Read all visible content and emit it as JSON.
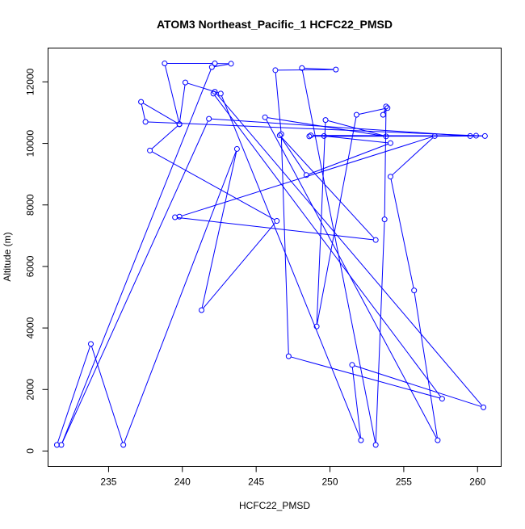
{
  "chart_data": {
    "type": "line",
    "title": "ATOM3 Northeast_Pacific_1 HCFC22_PMSD",
    "xlabel": "HCFC22_PMSD",
    "ylabel": "Altitude (m)",
    "xlim": [
      230.9,
      261.6
    ],
    "ylim": [
      -500,
      13100
    ],
    "x_ticks": [
      235,
      240,
      245,
      250,
      255,
      260
    ],
    "y_ticks": [
      0,
      2000,
      4000,
      6000,
      8000,
      10000,
      12000
    ],
    "line_color": "#0000ff",
    "grid": false,
    "markers": "open-circle",
    "series": [
      {
        "points": [
          [
            231.5,
            200
          ],
          [
            233.8,
            3480
          ],
          [
            236.0,
            200
          ],
          [
            243.7,
            9820
          ],
          [
            241.3,
            4580
          ],
          [
            246.4,
            7480
          ],
          [
            237.8,
            9770
          ],
          [
            239.8,
            10620
          ],
          [
            237.2,
            11350
          ],
          [
            237.5,
            10700
          ],
          [
            260.5,
            10240
          ],
          [
            248.7,
            10260
          ],
          [
            248.6,
            10230
          ],
          [
            259.5,
            10240
          ],
          [
            241.8,
            10800
          ],
          [
            231.8,
            200
          ],
          [
            242.0,
            12480
          ],
          [
            243.3,
            12590
          ],
          [
            242.2,
            12600
          ],
          [
            238.8,
            12600
          ],
          [
            239.8,
            10630
          ],
          [
            240.2,
            11980
          ],
          [
            242.6,
            11620
          ],
          [
            252.1,
            350
          ],
          [
            251.5,
            2800
          ],
          [
            260.4,
            1420
          ],
          [
            242.2,
            11680
          ],
          [
            242.1,
            11620
          ],
          [
            257.6,
            1700
          ],
          [
            247.2,
            3080
          ],
          [
            246.7,
            10300
          ],
          [
            246.3,
            12380
          ],
          [
            250.4,
            12400
          ],
          [
            248.1,
            12450
          ],
          [
            253.1,
            200
          ],
          [
            253.7,
            7530
          ],
          [
            253.8,
            11200
          ],
          [
            253.6,
            10930
          ],
          [
            253.9,
            11150
          ],
          [
            251.8,
            10930
          ],
          [
            249.1,
            4050
          ],
          [
            249.7,
            10760
          ],
          [
            253.8,
            10230
          ],
          [
            245.6,
            10850
          ],
          [
            257.3,
            350
          ],
          [
            255.7,
            5220
          ],
          [
            254.1,
            8920
          ],
          [
            257.1,
            10240
          ],
          [
            239.8,
            7620
          ],
          [
            239.5,
            7600
          ],
          [
            253.1,
            6860
          ],
          [
            246.6,
            10260
          ],
          [
            248.4,
            8970
          ],
          [
            254.1,
            10010
          ],
          [
            249.6,
            10240
          ],
          [
            259.9,
            10250
          ]
        ]
      }
    ]
  }
}
